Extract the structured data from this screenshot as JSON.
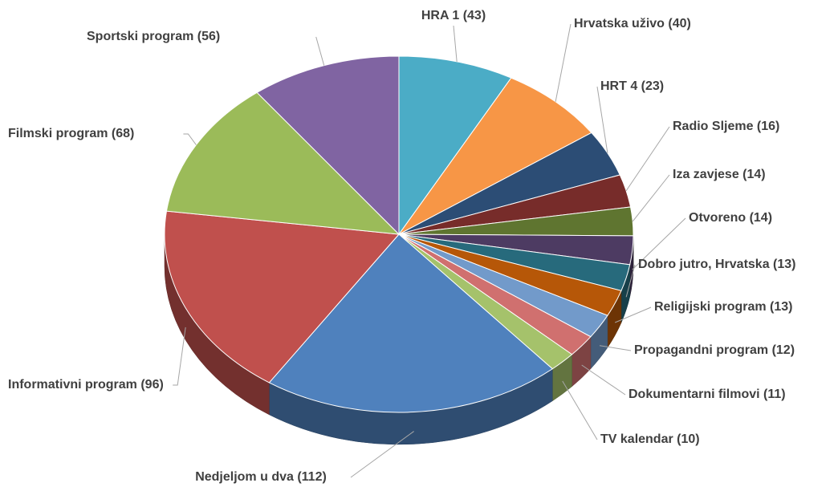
{
  "chart_data": {
    "type": "pie",
    "categories": [
      "HRA 1 (43)",
      "Hrvatska uživo (40)",
      "HRT 4 (23)",
      "Radio Sljeme (16)",
      "Iza zavjese (14)",
      "Otvoreno (14)",
      "Dobro jutro, Hrvatska (13)",
      "Religijski program (13)",
      "Propagandni program (12)",
      "Dokumentarni filmovi (11)",
      "TV kalendar (10)",
      "Nedjeljom u dva (112)",
      "Informativni program (96)",
      "Filmski program (68)",
      "Sportski program (56)"
    ],
    "values": [
      43,
      40,
      23,
      16,
      14,
      14,
      13,
      13,
      12,
      11,
      10,
      112,
      96,
      68,
      56
    ],
    "colors": [
      "#4bacc6",
      "#f79646",
      "#2c4d75",
      "#772c2a",
      "#5f7530",
      "#4d3b62",
      "#276a7c",
      "#b65708",
      "#729aca",
      "#d0706f",
      "#a5c26b",
      "#4f81bd",
      "#c0504d",
      "#9bbb59",
      "#8064a2"
    ]
  }
}
